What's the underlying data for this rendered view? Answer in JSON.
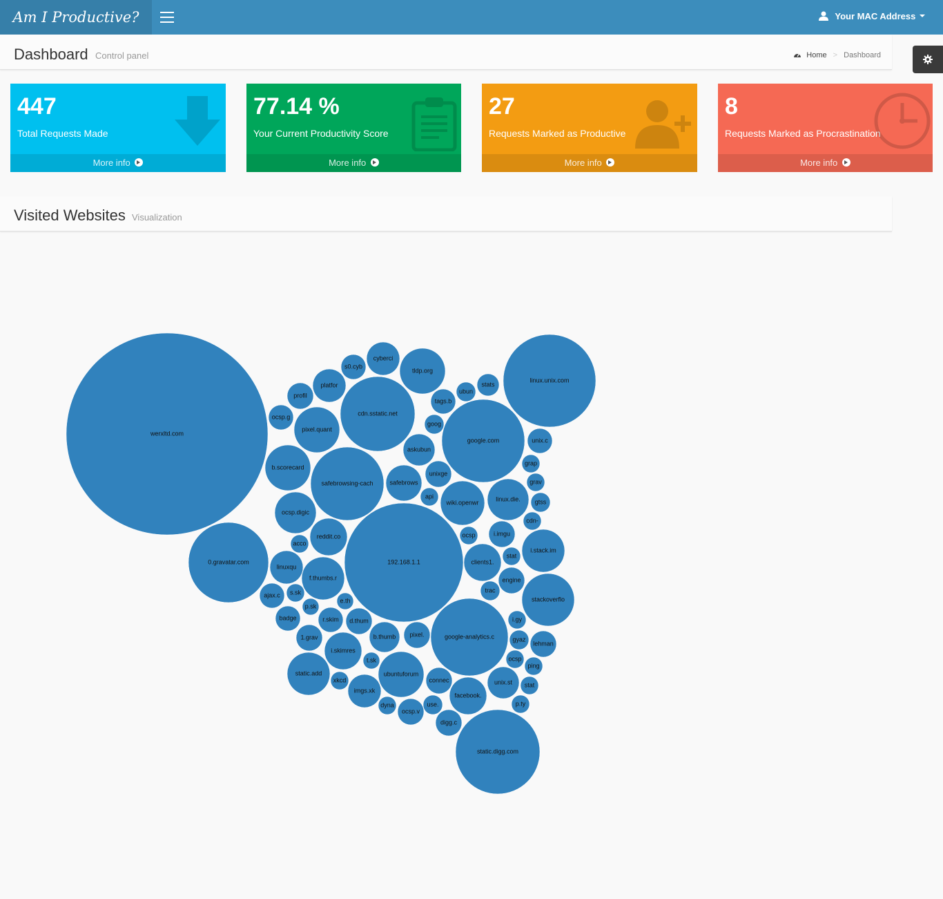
{
  "app": {
    "logo": "Am I Productive?",
    "user_menu": "Your MAC Address"
  },
  "header": {
    "title": "Dashboard",
    "subtitle": "Control panel"
  },
  "breadcrumb": {
    "home": "Home",
    "current": "Dashboard"
  },
  "stats": [
    {
      "value": "447",
      "label": "Total Requests Made",
      "footer": "More info",
      "color": "#00c0ef",
      "icon": "arrow-down-icon"
    },
    {
      "value": "77.14 %",
      "label": "Your Current Productivity Score",
      "footer": "More info",
      "color": "#00a65a",
      "icon": "clipboard-icon"
    },
    {
      "value": "27",
      "label": "Requests Marked as Productive",
      "footer": "More info",
      "color": "#f39c12",
      "icon": "user-add-icon"
    },
    {
      "value": "8",
      "label": "Requests Marked as Procrastination",
      "footer": "More info",
      "color": "#f56954",
      "icon": "clock-icon"
    }
  ],
  "section": {
    "title": "Visited Websites",
    "subtitle": "Visualization"
  },
  "chart_data": {
    "type": "bubble",
    "color": "#3182bd",
    "bubbles": [
      {
        "label": "werxltd.com",
        "r": 146
      },
      {
        "label": "192.168.1.1",
        "r": 86
      },
      {
        "label": "linux.unix.com",
        "r": 67
      },
      {
        "label": "static.digg.com",
        "r": 61
      },
      {
        "label": "google.com",
        "r": 60
      },
      {
        "label": "0.gravatar.com",
        "r": 58
      },
      {
        "label": "google-analytics.c",
        "r": 56
      },
      {
        "label": "cdn.sstatic.net",
        "r": 54
      },
      {
        "label": "safebrowsing-cach",
        "r": 53
      },
      {
        "label": "stackoverflo",
        "r": 38
      },
      {
        "label": "tldp.org",
        "r": 33
      },
      {
        "label": "pixel.quant",
        "r": 33
      },
      {
        "label": "b.scorecard",
        "r": 33
      },
      {
        "label": "ubuntuforum",
        "r": 33
      },
      {
        "label": "wiki.openwr",
        "r": 32
      },
      {
        "label": "f.thumbs.r",
        "r": 31
      },
      {
        "label": "i.stack.im",
        "r": 31
      },
      {
        "label": "static.add",
        "r": 31
      },
      {
        "label": "linux.die.",
        "r": 30
      },
      {
        "label": "ocsp.digic",
        "r": 30
      },
      {
        "label": "clients1.",
        "r": 27
      },
      {
        "label": "reddit.co",
        "r": 27
      },
      {
        "label": "facebook.",
        "r": 27
      },
      {
        "label": "i.skimres",
        "r": 27
      },
      {
        "label": "safebrows",
        "r": 26
      },
      {
        "label": "platfor",
        "r": 24
      },
      {
        "label": "linuxqu",
        "r": 24
      },
      {
        "label": "imgs.xk",
        "r": 24
      },
      {
        "label": "cyberci",
        "r": 24
      },
      {
        "label": "askubun",
        "r": 23
      },
      {
        "label": "unix.st",
        "r": 23
      },
      {
        "label": "b.thumb",
        "r": 22
      },
      {
        "label": "ocsp.v",
        "r": 19
      },
      {
        "label": "connec",
        "r": 19
      },
      {
        "label": "i.imgu",
        "r": 19
      },
      {
        "label": "profil",
        "r": 19
      },
      {
        "label": "unixge",
        "r": 19
      },
      {
        "label": "engine",
        "r": 19
      },
      {
        "label": "pixel.",
        "r": 19
      },
      {
        "label": "lehman",
        "r": 19
      },
      {
        "label": "1.grav",
        "r": 19
      },
      {
        "label": "d.thum",
        "r": 19
      },
      {
        "label": "digg.c",
        "r": 19
      },
      {
        "label": "s0.cyb",
        "r": 18
      },
      {
        "label": "ocsp.g",
        "r": 18
      },
      {
        "label": "tags.b",
        "r": 18
      },
      {
        "label": "unix.c",
        "r": 18
      },
      {
        "label": "ajax.c",
        "r": 18
      },
      {
        "label": "badge",
        "r": 18
      },
      {
        "label": "r.skim",
        "r": 18
      },
      {
        "label": "stats",
        "r": 16
      },
      {
        "label": "ubun",
        "r": 14
      },
      {
        "label": "goog",
        "r": 14
      },
      {
        "label": "grap",
        "r": 13
      },
      {
        "label": "grav",
        "r": 13
      },
      {
        "label": "gtss",
        "r": 14
      },
      {
        "label": "cdn-",
        "r": 13
      },
      {
        "label": "api",
        "r": 13
      },
      {
        "label": "ocsp",
        "r": 13
      },
      {
        "label": "stat",
        "r": 13
      },
      {
        "label": "trac",
        "r": 14
      },
      {
        "label": "i.gy",
        "r": 13
      },
      {
        "label": "gyaz",
        "r": 14
      },
      {
        "label": "ocsp",
        "r": 13
      },
      {
        "label": "ping",
        "r": 13
      },
      {
        "label": "stat",
        "r": 13
      },
      {
        "label": "p.ty",
        "r": 13
      },
      {
        "label": "use.",
        "r": 14
      },
      {
        "label": "dyna",
        "r": 13
      },
      {
        "label": "xkcd",
        "r": 13
      },
      {
        "label": "t.sk",
        "r": 12
      },
      {
        "label": "e.th",
        "r": 12
      },
      {
        "label": "p.sk",
        "r": 12
      },
      {
        "label": "s.sk",
        "r": 13
      },
      {
        "label": "acco",
        "r": 13
      }
    ]
  }
}
